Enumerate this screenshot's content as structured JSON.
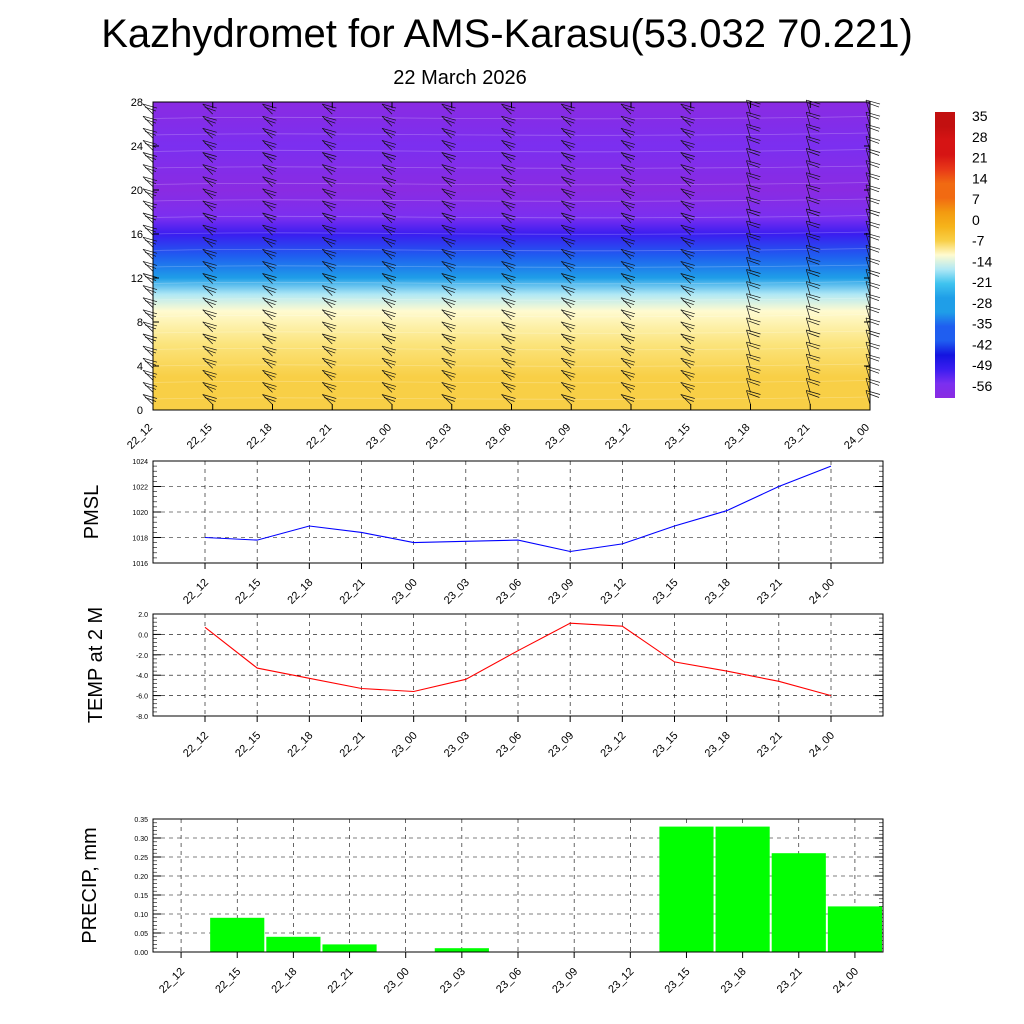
{
  "title": "Kazhydromet for AMS-Karasu(53.032 70.221)",
  "subtitle": "22 March 2026",
  "chart_data": [
    {
      "type": "heatmap",
      "description": "Time-height cross section of temperature with wind barbs",
      "x": [
        "22_12",
        "22_15",
        "22_18",
        "22_21",
        "23_00",
        "23_03",
        "23_06",
        "23_09",
        "23_12",
        "23_15",
        "23_18",
        "23_21",
        "24_00"
      ],
      "y_ticks": [
        "0",
        "4",
        "8",
        "12",
        "16",
        "20",
        "24",
        "28"
      ],
      "ylim": [
        0,
        28
      ],
      "colorbar_labels": [
        "35",
        "28",
        "21",
        "14",
        "7",
        "0",
        "-7",
        "-14",
        "-21",
        "-28",
        "-35",
        "-42",
        "-49",
        "-56"
      ],
      "colorbar_range": [
        -56,
        35
      ],
      "temperature_levels": [
        {
          "y": 0,
          "t": -5
        },
        {
          "y": 3,
          "t": -6
        },
        {
          "y": 6,
          "t": -8
        },
        {
          "y": 9,
          "t": -11
        },
        {
          "y": 10.5,
          "t": -14
        },
        {
          "y": 12,
          "t": -22
        },
        {
          "y": 14,
          "t": -32
        },
        {
          "y": 16,
          "t": -45
        },
        {
          "y": 17.5,
          "t": -54
        },
        {
          "y": 20,
          "t": -56
        },
        {
          "y": 24,
          "t": -54
        },
        {
          "y": 28,
          "t": -60
        }
      ],
      "colors": {
        "warm": "#f6b519",
        "light": "#fbe48a",
        "cyan": "#1fb4e8",
        "blue": "#1814e6",
        "purple": "#7b33f0",
        "barb": "#111111"
      }
    },
    {
      "type": "line",
      "ylabel": "PMSL",
      "x": [
        "22_12",
        "22_15",
        "22_18",
        "22_21",
        "23_00",
        "23_03",
        "23_06",
        "23_09",
        "23_12",
        "23_15",
        "23_18",
        "23_21",
        "24_00"
      ],
      "y_ticks": [
        "1016",
        "1018",
        "1020",
        "1022",
        "1024"
      ],
      "ylim": [
        1016,
        1024
      ],
      "series": [
        {
          "values": [
            1018.0,
            1017.8,
            1018.9,
            1018.4,
            1017.6,
            1017.7,
            1017.8,
            1016.9,
            1017.5,
            1018.9,
            1020.1,
            1022.0,
            1023.6
          ],
          "color": "#0000ff"
        }
      ],
      "grid": true
    },
    {
      "type": "line",
      "ylabel": "TEMP at 2 M",
      "x": [
        "22_12",
        "22_15",
        "22_18",
        "22_21",
        "23_00",
        "23_03",
        "23_06",
        "23_09",
        "23_12",
        "23_15",
        "23_18",
        "23_21",
        "24_00"
      ],
      "y_ticks": [
        "-8.0",
        "-6.0",
        "-4.0",
        "-2.0",
        "0.0",
        "2.0"
      ],
      "ylim": [
        -8,
        2
      ],
      "series": [
        {
          "values": [
            0.7,
            -3.3,
            -4.3,
            -5.3,
            -5.6,
            -4.4,
            -1.6,
            1.1,
            0.8,
            -2.7,
            -3.6,
            -4.6,
            -6.0
          ],
          "color": "#ff0000"
        }
      ],
      "grid": true
    },
    {
      "type": "bar",
      "ylabel": "PRECIP, mm",
      "x": [
        "22_12",
        "22_15",
        "22_18",
        "22_21",
        "23_00",
        "23_03",
        "23_06",
        "23_09",
        "23_12",
        "23_15",
        "23_18",
        "23_21",
        "24_00"
      ],
      "y_ticks": [
        "0.00",
        "0.05",
        "0.10",
        "0.15",
        "0.20",
        "0.25",
        "0.30",
        "0.35"
      ],
      "ylim": [
        0,
        0.35
      ],
      "values": [
        0.0,
        0.09,
        0.04,
        0.02,
        0.0,
        0.01,
        0.0,
        0.0,
        0.0,
        0.33,
        0.33,
        0.26,
        0.12
      ],
      "color": "#00ff00",
      "grid": true
    }
  ]
}
